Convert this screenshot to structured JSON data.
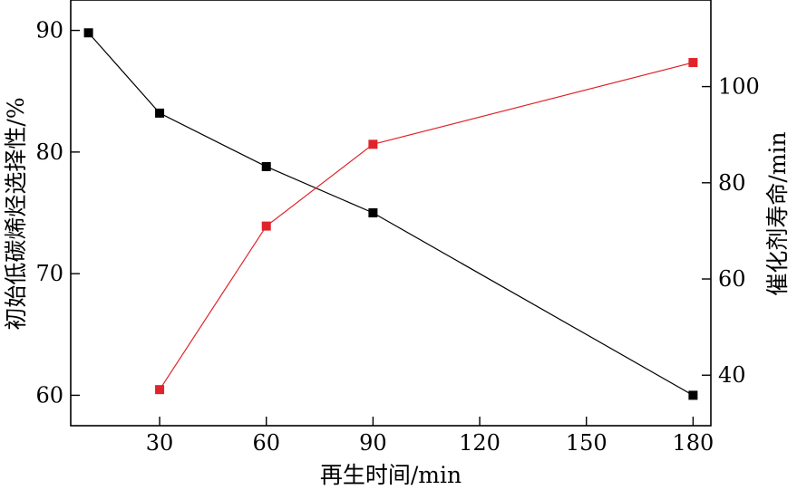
{
  "chart_data": {
    "type": "line",
    "title": "",
    "xlabel": "再生时间/min",
    "ylabel_left": "初始低碳烯烃选择性/%",
    "ylabel_right": "催化剂寿命/min",
    "xlim": [
      5,
      185
    ],
    "x_ticks": [
      30,
      60,
      90,
      120,
      150,
      180
    ],
    "y_left_lim": [
      57.5,
      92.5
    ],
    "y_left_ticks": [
      60,
      70,
      80,
      90
    ],
    "y_right_lim": [
      29.5,
      118
    ],
    "y_right_ticks": [
      40,
      60,
      80,
      100
    ],
    "grid": false,
    "legend": "none",
    "series": [
      {
        "axis": "left",
        "color": "#000000",
        "marker": "square",
        "x": [
          10,
          30,
          60,
          90,
          180
        ],
        "y": [
          89.8,
          83.2,
          78.8,
          75.0,
          60.0
        ]
      },
      {
        "axis": "right",
        "color": "#e0242b",
        "marker": "square",
        "x": [
          30,
          60,
          90,
          180
        ],
        "y": [
          37,
          71,
          88,
          105
        ]
      }
    ]
  }
}
